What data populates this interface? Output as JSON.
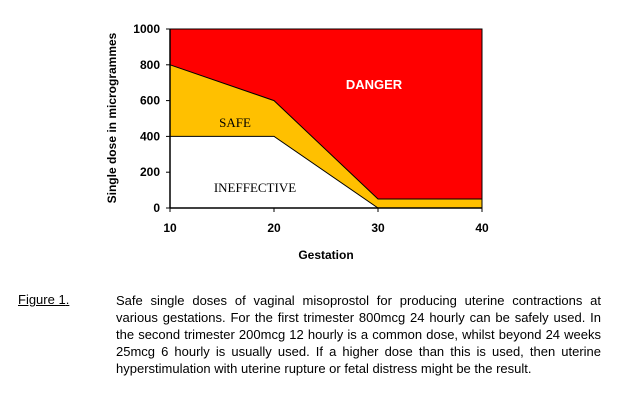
{
  "chart_data": {
    "type": "area",
    "xlabel": "Gestation",
    "ylabel": "Single dose in microgrammes",
    "xlim": [
      10,
      40
    ],
    "ylim": [
      0,
      1000
    ],
    "x_ticks": [
      10,
      20,
      30,
      40
    ],
    "y_ticks": [
      0,
      200,
      400,
      600,
      800,
      1000
    ],
    "series": [
      {
        "name": "INEFFECTIVE",
        "color": "#ffffff",
        "x": [
          10,
          20,
          30,
          40
        ],
        "y": [
          400,
          400,
          0,
          0
        ]
      },
      {
        "name": "SAFE",
        "color": "#ffc000",
        "x": [
          10,
          20,
          30,
          40
        ],
        "y": [
          800,
          600,
          50,
          50
        ]
      },
      {
        "name": "DANGER",
        "color": "#ff0000",
        "x": [
          10,
          40
        ],
        "y": [
          1000,
          1000
        ]
      }
    ],
    "annotations": [
      "DANGER",
      "SAFE",
      "INEFFECTIVE"
    ]
  },
  "figure": {
    "label": "Figure 1",
    "punct": ".",
    "caption": "Safe single doses of vaginal misoprostol for producing uterine contractions at various gestations.  For the first trimester 800mcg 24 hourly can be safely used.  In the second trimester 200mcg 12 hourly is a common dose, whilst beyond 24 weeks 25mcg 6 hourly is usually used.  If a higher dose than this is used, then uterine hyperstimulation with uterine rupture or fetal distress might be the result."
  }
}
